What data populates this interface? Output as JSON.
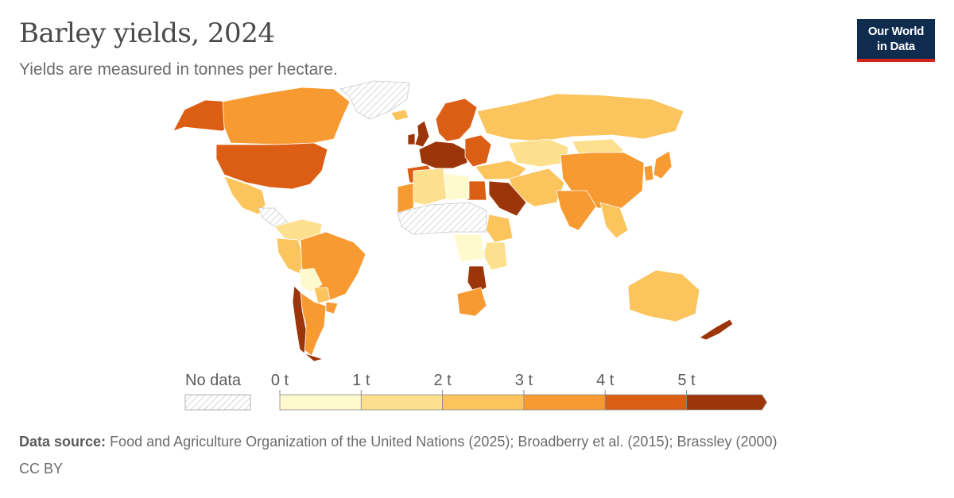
{
  "title": "Barley yields, 2024",
  "subtitle": "Yields are measured in tonnes per hectare.",
  "logo": {
    "line1": "Our World",
    "line2": "in Data"
  },
  "colors": {
    "no_data": "#e6e6e6",
    "bins": [
      "#fffacd",
      "#fde08d",
      "#fcc45c",
      "#f89a32",
      "#dc5e14",
      "#9c3509"
    ]
  },
  "chart_data": {
    "type": "choropleth",
    "unit": "tonnes per hectare",
    "year": 2024,
    "legend": {
      "no_data_label": "No data",
      "bins": [
        {
          "min": 0,
          "max": 1
        },
        {
          "min": 1,
          "max": 2
        },
        {
          "min": 2,
          "max": 3
        },
        {
          "min": 3,
          "max": 4
        },
        {
          "min": 4,
          "max": 5
        },
        {
          "min": 5,
          "max": null
        }
      ],
      "tick_labels": [
        "0 t",
        "1 t",
        "2 t",
        "3 t",
        "4 t",
        "5 t"
      ]
    },
    "regions": [
      {
        "name": "Alaska",
        "bin": 4
      },
      {
        "name": "Canada",
        "bin": 3
      },
      {
        "name": "United States",
        "bin": 4
      },
      {
        "name": "Mexico",
        "bin": 2
      },
      {
        "name": "Greenland",
        "bin": null
      },
      {
        "name": "Central America",
        "bin": null
      },
      {
        "name": "Colombia / Venezuela",
        "bin": 1
      },
      {
        "name": "Peru / Ecuador",
        "bin": 2
      },
      {
        "name": "Brazil",
        "bin": 3
      },
      {
        "name": "Bolivia",
        "bin": 0
      },
      {
        "name": "Paraguay",
        "bin": 2
      },
      {
        "name": "Argentina",
        "bin": 3
      },
      {
        "name": "Chile",
        "bin": 5
      },
      {
        "name": "Uruguay",
        "bin": 3
      },
      {
        "name": "Iceland",
        "bin": 2
      },
      {
        "name": "Scandinavia",
        "bin": 4
      },
      {
        "name": "United Kingdom",
        "bin": 5
      },
      {
        "name": "Ireland",
        "bin": 5
      },
      {
        "name": "Western Europe",
        "bin": 5
      },
      {
        "name": "Spain / Portugal",
        "bin": 4
      },
      {
        "name": "Eastern Europe",
        "bin": 4
      },
      {
        "name": "Russia",
        "bin": 2
      },
      {
        "name": "Turkey / Caucasus",
        "bin": 2
      },
      {
        "name": "Kazakhstan",
        "bin": 1
      },
      {
        "name": "Mongolia",
        "bin": 1
      },
      {
        "name": "China",
        "bin": 3
      },
      {
        "name": "Korea",
        "bin": 3
      },
      {
        "name": "Japan",
        "bin": 3
      },
      {
        "name": "Iran / Central Asia",
        "bin": 2
      },
      {
        "name": "India",
        "bin": 3
      },
      {
        "name": "Southeast Asia",
        "bin": 2
      },
      {
        "name": "Saudi Arabia",
        "bin": 5
      },
      {
        "name": "Egypt",
        "bin": 4
      },
      {
        "name": "Morocco",
        "bin": 3
      },
      {
        "name": "Algeria",
        "bin": 1
      },
      {
        "name": "Libya",
        "bin": 0
      },
      {
        "name": "Ethiopia",
        "bin": 2
      },
      {
        "name": "Kenya / Tanzania",
        "bin": 1
      },
      {
        "name": "DR Congo region",
        "bin": 0
      },
      {
        "name": "Zambia / Zimbabwe",
        "bin": 5
      },
      {
        "name": "South Africa",
        "bin": 3
      },
      {
        "name": "Australia",
        "bin": 2
      },
      {
        "name": "New Zealand",
        "bin": 5
      },
      {
        "name": "Sahel / West Africa",
        "bin": null
      }
    ]
  },
  "source": {
    "label": "Data source:",
    "text": "Food and Agriculture Organization of the United Nations (2025); Broadberry et al. (2015); Brassley (2000)"
  },
  "license": "CC BY"
}
